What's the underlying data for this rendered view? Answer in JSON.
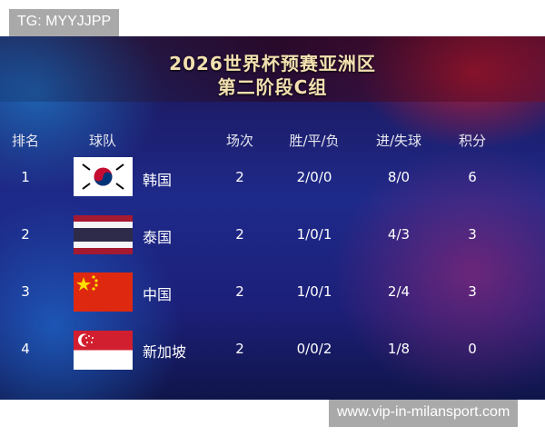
{
  "watermark_top": "TG: MYYJJPP",
  "watermark_bottom": "www.vip-in-milansport.com",
  "title_line1": "2026世界杯预赛亚洲区",
  "title_line2": "第二阶段C组",
  "headers": {
    "rank": "排名",
    "team": "球队",
    "played": "场次",
    "wdl": "胜/平/负",
    "goals": "进/失球",
    "points": "积分"
  },
  "rows": [
    {
      "rank": "1",
      "flag": "south-korea-flag",
      "team": "韩国",
      "played": "2",
      "wdl": "2/0/0",
      "goals": "8/0",
      "points": "6"
    },
    {
      "rank": "2",
      "flag": "thailand-flag",
      "team": "泰国",
      "played": "2",
      "wdl": "1/0/1",
      "goals": "4/3",
      "points": "3"
    },
    {
      "rank": "3",
      "flag": "china-flag",
      "team": "中国",
      "played": "2",
      "wdl": "1/0/1",
      "goals": "2/4",
      "points": "3"
    },
    {
      "rank": "4",
      "flag": "singapore-flag",
      "team": "新加坡",
      "played": "2",
      "wdl": "0/0/2",
      "goals": "1/8",
      "points": "0"
    }
  ]
}
